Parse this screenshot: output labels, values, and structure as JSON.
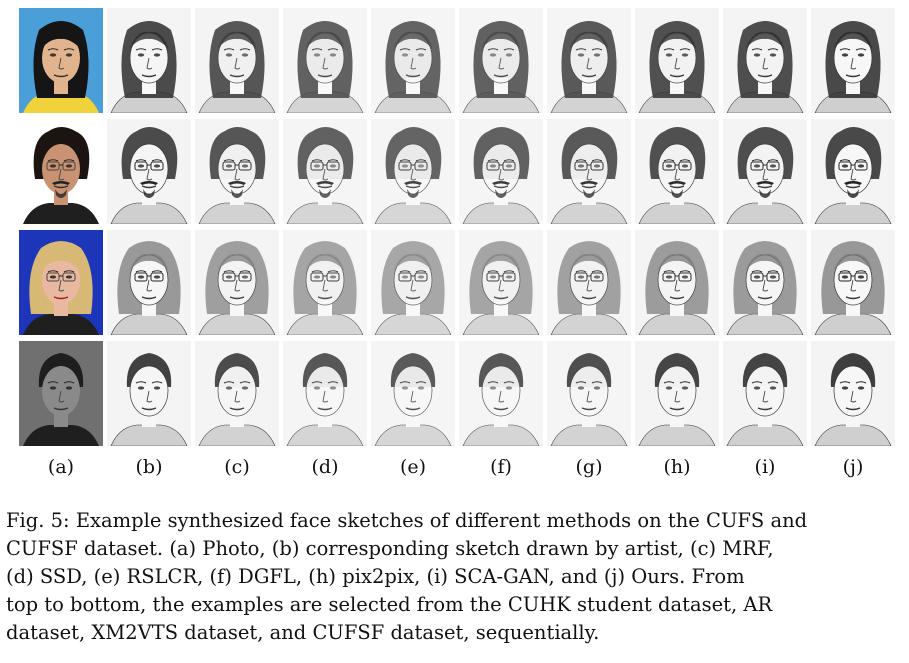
{
  "figure": {
    "rows": [
      {
        "photo_bg": "#4a9fd8",
        "hair": "#151515",
        "skin_photo": "#e2b48e",
        "hair_shape": "long",
        "glasses": false,
        "beard": false
      },
      {
        "photo_bg": "#ffffff",
        "hair": "#1b1410",
        "skin_photo": "#c99272",
        "hair_shape": "curly",
        "glasses": true,
        "beard": true
      },
      {
        "photo_bg": "#1d35b8",
        "hair": "#d8b875",
        "skin_photo": "#e8b9a0",
        "hair_shape": "bob",
        "glasses": true,
        "beard": false
      },
      {
        "photo_bg": "#707070",
        "hair": "#1e1e1e",
        "skin_photo": "#8a8a8a",
        "hair_shape": "short",
        "glasses": false,
        "beard": false
      }
    ],
    "column_labels": [
      "(a)",
      "(b)",
      "(c)",
      "(d)",
      "(e)",
      "(f)",
      "(g)",
      "(h)",
      "(i)",
      "(j)"
    ]
  },
  "caption": {
    "lines": [
      "Fig. 5: Example synthesized face sketches of different methods on the CUFS and",
      "CUFSF dataset. (a) Photo, (b) corresponding sketch drawn by artist, (c) MRF,",
      "(d) SSD, (e) RSLCR, (f) DGFL, (h) pix2pix, (i) SCA-GAN, and (j) Ours. From",
      "top to bottom, the examples are selected from the CUHK student dataset, AR",
      "dataset, XM2VTS dataset, and CUFSF dataset, sequentially."
    ]
  }
}
